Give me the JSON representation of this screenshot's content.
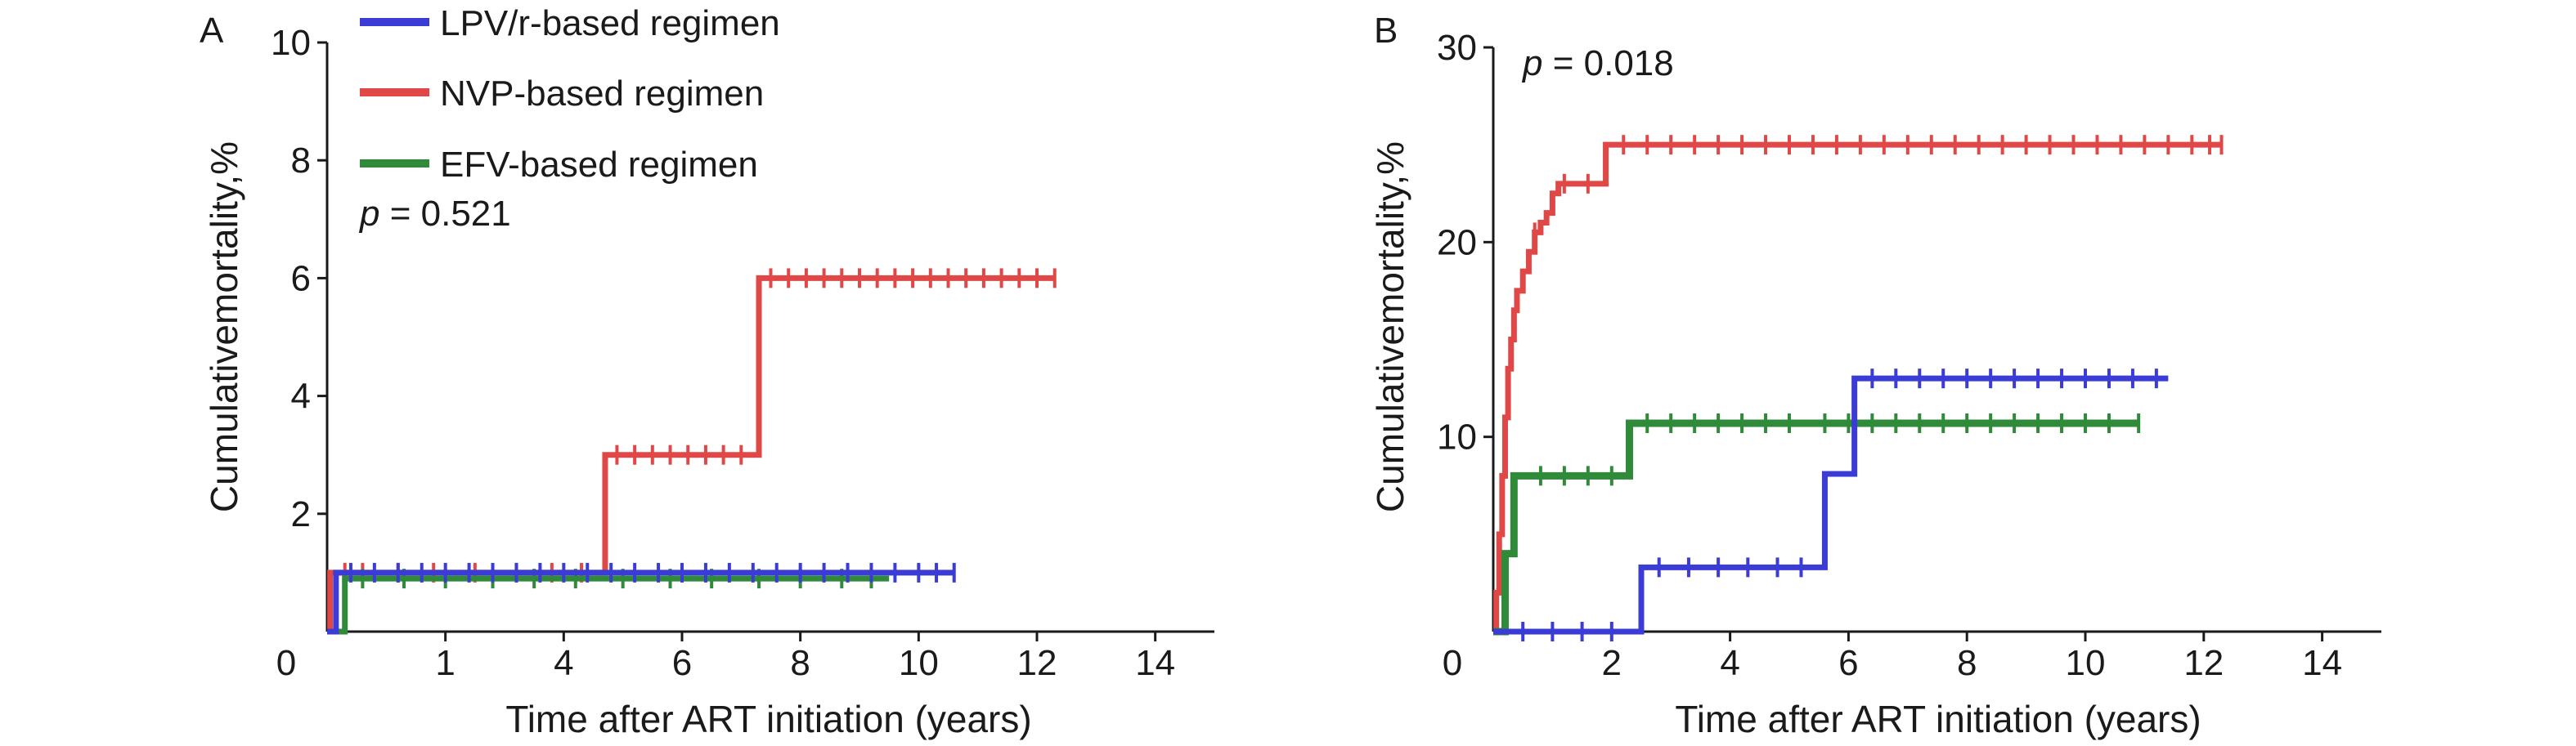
{
  "legend": [
    {
      "label": "LPV/r-based regimen",
      "color": "#3b3bd6"
    },
    {
      "label": "NVP-based regimen",
      "color": "#e04848"
    },
    {
      "label": "EFV-based regimen",
      "color": "#2f8a3a"
    }
  ],
  "chart_data": [
    {
      "type": "line",
      "panel": "A",
      "title": "",
      "xlabel": "Time after ART initiation (years)",
      "ylabel": "Cumulativemortality,%",
      "x_ticks": [
        0,
        1,
        4,
        6,
        8,
        10,
        12,
        14
      ],
      "y_ticks": [
        2,
        4,
        6,
        8,
        10
      ],
      "y_tick_labels": [
        "2",
        "4",
        "6",
        "8",
        "10"
      ],
      "ylim": [
        0,
        10
      ],
      "annotation": {
        "italic": "p",
        "text": " = 0.521"
      },
      "series": [
        {
          "name": "NVP-based regimen",
          "color": "#e04848",
          "x": [
            0,
            0.05,
            4.7,
            7.3,
            12.3
          ],
          "y": [
            0,
            1.0,
            3.0,
            6.0,
            6.0
          ],
          "censor_x": [
            0.3,
            0.6,
            1.2,
            1.8,
            2.5,
            3.2,
            3.8,
            4.3,
            4.9,
            5.2,
            5.5,
            5.8,
            6.1,
            6.4,
            6.7,
            7.0,
            7.5,
            7.8,
            8.1,
            8.4,
            8.7,
            9.0,
            9.3,
            9.6,
            9.9,
            10.2,
            10.5,
            10.8,
            11.1,
            11.4,
            11.7,
            12.0,
            12.3
          ]
        },
        {
          "name": "EFV-based regimen",
          "color": "#2f8a3a",
          "x": [
            0,
            0.3,
            9.5
          ],
          "y": [
            0,
            0.9,
            0.9
          ],
          "censor_x": [
            0.6,
            1.3,
            2.0,
            2.8,
            3.5,
            4.2,
            5.0,
            5.8,
            6.5,
            7.3,
            8.0,
            8.7,
            9.2
          ]
        },
        {
          "name": "LPV/r-based regimen",
          "color": "#3b3bd6",
          "x": [
            0,
            0.15,
            10.6
          ],
          "y": [
            0,
            1.0,
            1.0
          ],
          "censor_x": [
            0.4,
            0.8,
            1.2,
            1.6,
            2.0,
            2.4,
            2.8,
            3.2,
            3.6,
            4.0,
            4.4,
            4.8,
            5.2,
            5.6,
            6.0,
            6.4,
            6.8,
            7.2,
            7.6,
            8.0,
            8.4,
            8.8,
            9.2,
            9.6,
            10.0,
            10.3,
            10.6
          ]
        }
      ]
    },
    {
      "type": "line",
      "panel": "B",
      "title": "",
      "xlabel": "Time after ART initiation (years)",
      "ylabel": "Cumulativemortality,%",
      "x_ticks": [
        0,
        2,
        4,
        6,
        8,
        10,
        12,
        14
      ],
      "y_ticks": [
        10,
        20,
        30
      ],
      "y_tick_labels": [
        "10",
        "20",
        "30"
      ],
      "ylim": [
        0,
        30
      ],
      "annotation": {
        "italic": "p",
        "text": " = 0.018"
      },
      "series": [
        {
          "name": "NVP-based regimen",
          "color": "#e04848",
          "x": [
            0,
            0.05,
            0.1,
            0.15,
            0.2,
            0.25,
            0.3,
            0.35,
            0.4,
            0.5,
            0.6,
            0.7,
            0.8,
            0.9,
            1.0,
            1.1,
            1.3,
            1.4,
            1.5,
            1.7,
            1.9,
            12.3
          ],
          "y": [
            0,
            2,
            5,
            8,
            11,
            13.5,
            15,
            16.5,
            17.5,
            18.5,
            19.5,
            20.5,
            21,
            21.5,
            22.5,
            23,
            23,
            23,
            23,
            23,
            25,
            25
          ],
          "censor_x": [
            0.7,
            1.2,
            1.6,
            2.2,
            2.6,
            3.0,
            3.4,
            3.8,
            4.2,
            4.6,
            5.0,
            5.4,
            5.8,
            6.2,
            6.6,
            7.0,
            7.4,
            7.8,
            8.2,
            8.6,
            9.0,
            9.4,
            9.8,
            10.2,
            10.6,
            11.0,
            11.4,
            11.8,
            12.1,
            12.3
          ]
        },
        {
          "name": "EFV-based regimen",
          "color": "#2f8a3a",
          "x": [
            0,
            0.2,
            0.35,
            2.3,
            10.9
          ],
          "y": [
            0,
            4,
            8,
            10.7,
            10.7
          ],
          "censor_x": [
            0.8,
            1.2,
            1.6,
            2.0,
            2.6,
            3.0,
            3.4,
            3.8,
            4.2,
            4.6,
            5.0,
            5.6,
            6.0,
            6.4,
            6.8,
            7.2,
            7.6,
            8.0,
            8.4,
            8.8,
            9.2,
            9.6,
            10.0,
            10.4,
            10.9
          ]
        },
        {
          "name": "LPV/r-based regimen",
          "color": "#3b3bd6",
          "x": [
            0,
            2.5,
            5.6,
            6.1,
            11.4
          ],
          "y": [
            0,
            3.3,
            8.1,
            13,
            13
          ],
          "censor_x": [
            0.5,
            1.0,
            1.5,
            2.0,
            2.8,
            3.3,
            3.8,
            4.3,
            4.8,
            5.2,
            6.4,
            6.8,
            7.2,
            7.6,
            8.0,
            8.4,
            8.8,
            9.2,
            9.6,
            10.0,
            10.4,
            10.8,
            11.2
          ]
        }
      ]
    }
  ]
}
